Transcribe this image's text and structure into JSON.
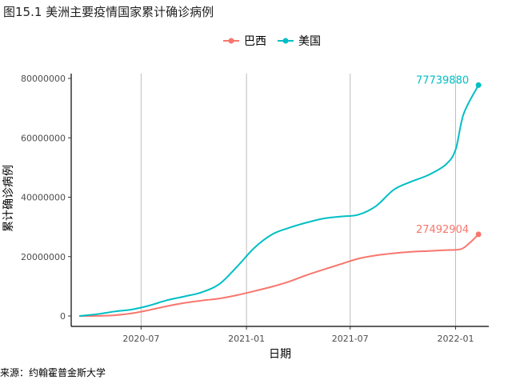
{
  "chart_data": {
    "type": "line",
    "title": "图15.1 美洲主要疫情国家累计确诊病例",
    "xlabel": "日期",
    "ylabel": "累计确诊病例",
    "source": "来源：约翰霍普金斯大学",
    "x_ticks": [
      "2020-07",
      "2021-01",
      "2021-07",
      "2022-01"
    ],
    "y_ticks": [
      0,
      20000000,
      40000000,
      60000000,
      80000000
    ],
    "y_tick_labels": [
      "0",
      "20000000",
      "40000000",
      "60000000",
      "80000000"
    ],
    "ylim": [
      0,
      80000000
    ],
    "xlim": [
      "2020-03-01",
      "2022-02-28"
    ],
    "grid": "vertical major gridlines only",
    "legend_position": "top",
    "series": [
      {
        "name": "巴西",
        "color": "#F8766D",
        "end_label": "27492904",
        "points": [
          [
            "2020-03-15",
            0
          ],
          [
            "2020-04-15",
            30000
          ],
          [
            "2020-05-15",
            250000
          ],
          [
            "2020-06-15",
            900000
          ],
          [
            "2020-07-15",
            2000000
          ],
          [
            "2020-08-15",
            3300000
          ],
          [
            "2020-09-15",
            4400000
          ],
          [
            "2020-10-15",
            5200000
          ],
          [
            "2020-11-15",
            5900000
          ],
          [
            "2020-12-15",
            7000000
          ],
          [
            "2021-01-15",
            8400000
          ],
          [
            "2021-02-15",
            9900000
          ],
          [
            "2021-03-15",
            11500000
          ],
          [
            "2021-04-15",
            13700000
          ],
          [
            "2021-05-15",
            15600000
          ],
          [
            "2021-06-15",
            17500000
          ],
          [
            "2021-07-15",
            19300000
          ],
          [
            "2021-08-15",
            20400000
          ],
          [
            "2021-09-15",
            21100000
          ],
          [
            "2021-10-15",
            21600000
          ],
          [
            "2021-11-15",
            21900000
          ],
          [
            "2021-12-15",
            22200000
          ],
          [
            "2022-01-10",
            22500000
          ],
          [
            "2022-01-25",
            24500000
          ],
          [
            "2022-02-10",
            27492904
          ]
        ]
      },
      {
        "name": "美国",
        "color": "#00BFC4",
        "end_label": "77739880",
        "points": [
          [
            "2020-03-15",
            0
          ],
          [
            "2020-04-15",
            600000
          ],
          [
            "2020-05-15",
            1500000
          ],
          [
            "2020-06-15",
            2200000
          ],
          [
            "2020-07-15",
            3500000
          ],
          [
            "2020-08-15",
            5300000
          ],
          [
            "2020-09-15",
            6600000
          ],
          [
            "2020-10-15",
            8000000
          ],
          [
            "2020-11-15",
            10800000
          ],
          [
            "2020-12-15",
            16500000
          ],
          [
            "2021-01-15",
            23000000
          ],
          [
            "2021-02-15",
            27500000
          ],
          [
            "2021-03-15",
            29600000
          ],
          [
            "2021-04-15",
            31400000
          ],
          [
            "2021-05-15",
            32800000
          ],
          [
            "2021-06-15",
            33500000
          ],
          [
            "2021-07-15",
            34100000
          ],
          [
            "2021-08-15",
            37000000
          ],
          [
            "2021-09-15",
            42500000
          ],
          [
            "2021-10-15",
            45200000
          ],
          [
            "2021-11-15",
            47500000
          ],
          [
            "2021-12-15",
            51000000
          ],
          [
            "2022-01-01",
            56000000
          ],
          [
            "2022-01-15",
            68000000
          ],
          [
            "2022-02-10",
            77739880
          ]
        ]
      }
    ]
  }
}
